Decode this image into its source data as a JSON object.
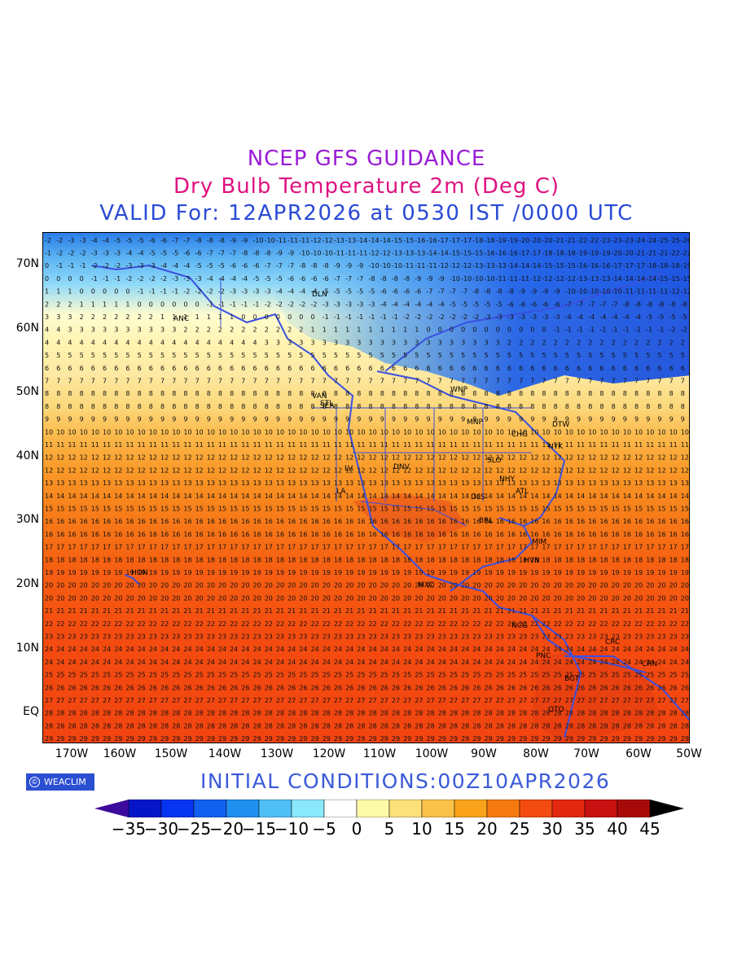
{
  "header": {
    "title": "NCEP GFS GUIDANCE",
    "subtitle": "Dry Bulb Temperature 2m (Deg C)",
    "valid": "VALID For: 12APR2026 at 0530 IST /0000 UTC"
  },
  "colors": {
    "title": "#9a1bd6",
    "subtitle": "#e0117f",
    "valid": "#2a4ad6",
    "initial": "#3a5ad8",
    "coastline": "#3a50e0"
  },
  "map": {
    "lat_labels": [
      "70N",
      "60N",
      "50N",
      "40N",
      "30N",
      "20N",
      "10N",
      "EQ"
    ],
    "lon_labels": [
      "170W",
      "160W",
      "150W",
      "140W",
      "130W",
      "120W",
      "110W",
      "100W",
      "90W",
      "80W",
      "70W",
      "60W",
      "50W"
    ],
    "lat_range": [
      -5,
      75
    ],
    "lon_range": [
      -175,
      -50
    ],
    "station_labels": [
      "ANC",
      "DLN",
      "VAN",
      "SEA",
      "STL",
      "LA",
      "LV",
      "DNV",
      "SLO",
      "WNP",
      "MNP",
      "DTW",
      "NYK",
      "CHG",
      "BRL",
      "MIM",
      "HVN",
      "MXC",
      "NCG",
      "PNC",
      "BGT",
      "CRC",
      "QTO",
      "DLS",
      "HON",
      "ATL",
      "NHY",
      "CRN"
    ]
  },
  "footer": {
    "brand": "WEACLIM",
    "initial_conditions": "INITIAL  CONDITIONS:00Z10APR2026"
  },
  "colorbar": {
    "labels": [
      "-35",
      "-30",
      "-25",
      "-20",
      "-15",
      "-10",
      "-5",
      "0",
      "5",
      "10",
      "15",
      "20",
      "25",
      "30",
      "35",
      "40",
      "45"
    ],
    "colors": [
      "#3c0a9c",
      "#0516c8",
      "#0535f0",
      "#1060f0",
      "#2090f0",
      "#4fc0f5",
      "#8ae8fb",
      "#ffffff",
      "#fffaa8",
      "#fde07a",
      "#fbc24a",
      "#f9a21a",
      "#f77a10",
      "#f44c10",
      "#e42810",
      "#c81010",
      "#a80a0a",
      "#000000"
    ]
  }
}
